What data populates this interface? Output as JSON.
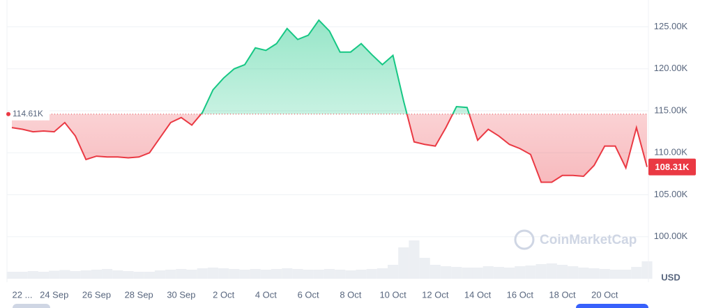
{
  "chart_data": {
    "type": "line",
    "values": [
      113.0,
      112.8,
      112.5,
      112.6,
      112.5,
      113.6,
      112.0,
      109.2,
      109.6,
      109.5,
      109.5,
      109.4,
      109.5,
      110.0,
      111.8,
      113.6,
      114.2,
      113.3,
      114.8,
      117.5,
      118.9,
      120.0,
      120.5,
      122.5,
      122.2,
      123.0,
      124.8,
      123.5,
      124.0,
      125.8,
      124.5,
      122.0,
      122.0,
      123.0,
      121.7,
      120.5,
      121.6,
      116.2,
      111.3,
      111.0,
      110.8,
      113.0,
      115.5,
      115.4,
      111.5,
      112.8,
      112.0,
      111.0,
      110.5,
      109.8,
      106.5,
      106.5,
      107.3,
      107.3,
      107.2,
      108.5,
      110.8,
      110.8,
      108.2,
      113.0,
      108.31
    ],
    "volume": [
      2,
      2,
      2.2,
      2,
      2.3,
      2.5,
      2.2,
      2.4,
      2.6,
      2.8,
      2.4,
      2.2,
      2,
      2,
      2.4,
      2.6,
      2.8,
      2.6,
      3,
      3.2,
      3,
      2.8,
      2.6,
      2.8,
      2.6,
      2.8,
      3,
      2.8,
      2.6,
      2.6,
      2.8,
      2.6,
      2.4,
      2.6,
      2.8,
      3,
      4,
      9,
      11,
      6,
      4,
      3.6,
      3.4,
      3.2,
      3.2,
      3.6,
      3.4,
      3.2,
      3.6,
      3.8,
      4.2,
      4.4,
      4,
      3.6,
      3.2,
      3,
      2.8,
      2.6,
      2.6,
      3.4,
      5
    ],
    "baseline": {
      "value": 114.61,
      "label": "114.61K"
    },
    "last_value_label": "108.31K",
    "up_color": "#16c784",
    "down_color": "#ea3943",
    "ylim": [
      95,
      128.2
    ],
    "yticks": [
      {
        "value": 100,
        "label": "100.00K"
      },
      {
        "value": 105,
        "label": "105.00K"
      },
      {
        "value": 110,
        "label": "110.00K"
      },
      {
        "value": 115,
        "label": "115.00K"
      },
      {
        "value": 120,
        "label": "120.00K"
      },
      {
        "value": 125,
        "label": "125.00K"
      }
    ],
    "xlim": [
      -0.46,
      60
    ],
    "xticks": [
      {
        "value": 0,
        "label": "22 ..."
      },
      {
        "value": 4,
        "label": "24 Sep"
      },
      {
        "value": 8,
        "label": "26 Sep"
      },
      {
        "value": 12,
        "label": "28 Sep"
      },
      {
        "value": 16,
        "label": "30 Sep"
      },
      {
        "value": 20,
        "label": "2 Oct"
      },
      {
        "value": 24,
        "label": "4 Oct"
      },
      {
        "value": 28,
        "label": "6 Oct"
      },
      {
        "value": 32,
        "label": "8 Oct"
      },
      {
        "value": 36,
        "label": "10 Oct"
      },
      {
        "value": 40,
        "label": "12 Oct"
      },
      {
        "value": 44,
        "label": "14 Oct"
      },
      {
        "value": 48,
        "label": "16 Oct"
      },
      {
        "value": 52,
        "label": "18 Oct"
      },
      {
        "value": 56,
        "label": "20 Oct"
      }
    ],
    "y_unit": "USD",
    "watermark": "CoinMarketCap",
    "grid": true
  }
}
